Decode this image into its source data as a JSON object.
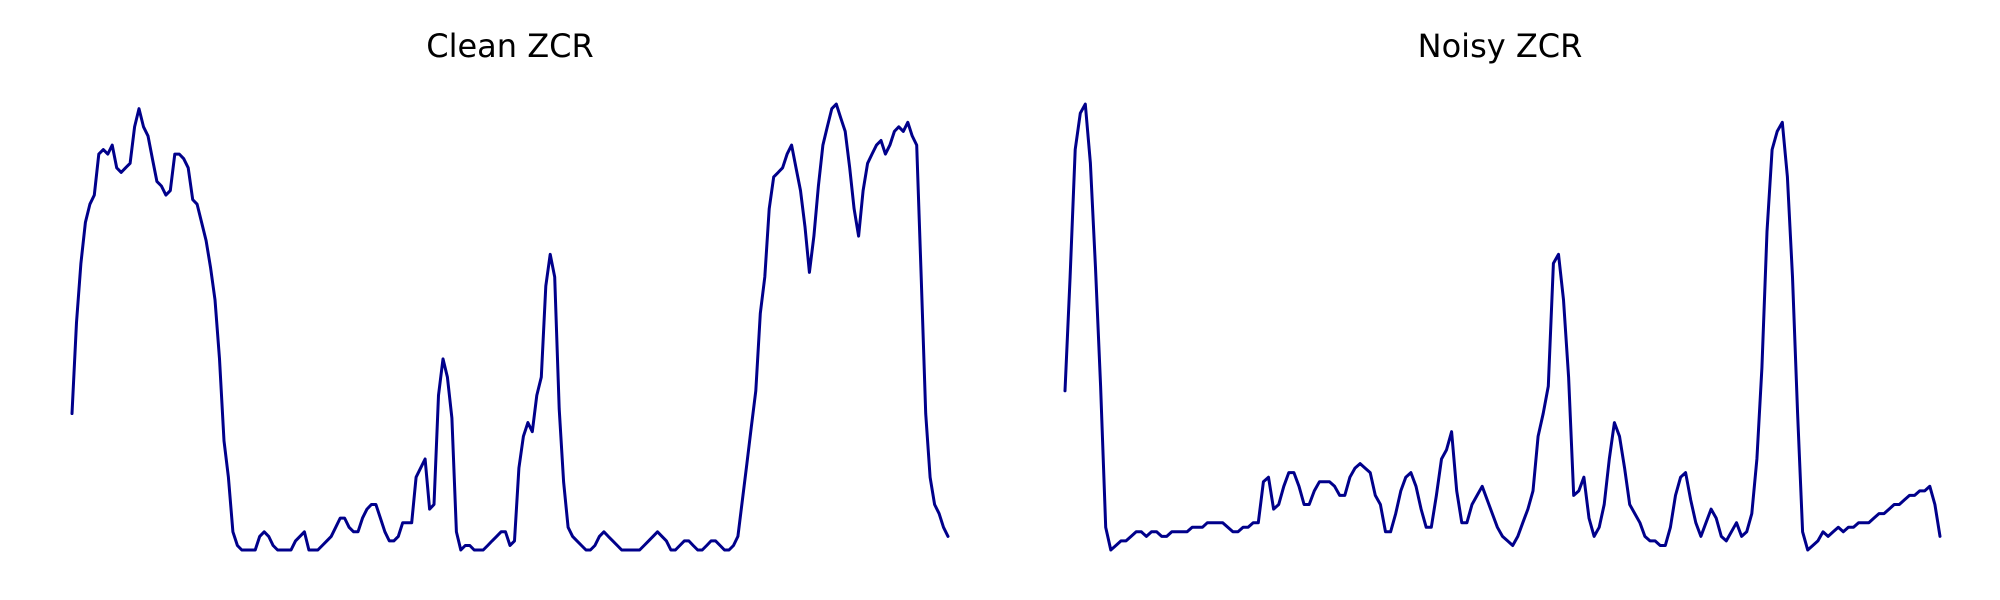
{
  "colors": {
    "line": "#00008B",
    "background": "#ffffff"
  },
  "chart_data": [
    {
      "type": "line",
      "title": "Clean ZCR",
      "xlabel": "",
      "ylabel": "",
      "grid": false,
      "axes_visible": false,
      "xlim": [
        0,
        165
      ],
      "ylim": [
        0,
        100
      ],
      "series": [
        {
          "values": [
            30,
            50,
            63,
            72,
            76,
            78,
            87,
            88,
            87,
            89,
            84,
            83,
            84,
            85,
            93,
            97,
            93,
            91,
            86,
            81,
            80,
            78,
            79,
            87,
            87,
            86,
            84,
            77,
            76,
            72,
            68,
            62,
            55,
            42,
            24,
            16,
            4,
            1,
            0,
            0,
            0,
            0,
            3,
            4,
            3,
            1,
            0,
            0,
            0,
            0,
            2,
            3,
            4,
            0,
            0,
            0,
            1,
            2,
            3,
            5,
            7,
            7,
            5,
            4,
            4,
            7,
            9,
            10,
            10,
            7,
            4,
            2,
            2,
            3,
            6,
            6,
            6,
            16,
            18,
            20,
            9,
            10,
            34,
            42,
            38,
            29,
            4,
            0,
            1,
            1,
            0,
            0,
            0,
            1,
            2,
            3,
            4,
            4,
            1,
            2,
            18,
            25,
            28,
            26,
            34,
            38,
            58,
            65,
            60,
            31,
            15,
            5,
            3,
            2,
            1,
            0,
            0,
            1,
            3,
            4,
            3,
            2,
            1,
            0,
            0,
            0,
            0,
            0,
            1,
            2,
            3,
            4,
            3,
            2,
            0,
            0,
            1,
            2,
            2,
            1,
            0,
            0,
            1,
            2,
            2,
            1,
            0,
            0,
            1,
            3,
            11,
            19,
            27,
            35,
            52,
            60,
            75,
            82,
            83,
            84,
            87,
            89,
            84,
            79,
            71,
            61,
            69,
            80,
            89,
            93,
            97,
            98,
            95,
            92,
            84,
            75,
            69,
            79,
            85,
            87,
            89,
            90,
            87,
            89,
            92,
            93,
            92,
            94,
            91,
            89,
            60,
            30,
            16,
            10,
            8,
            5,
            3
          ]
        }
      ]
    },
    {
      "type": "line",
      "title": "Noisy ZCR",
      "xlabel": "",
      "ylabel": "",
      "grid": false,
      "axes_visible": false,
      "xlim": [
        0,
        165
      ],
      "ylim": [
        0,
        100
      ],
      "series": [
        {
          "values": [
            35,
            60,
            88,
            96,
            98,
            85,
            62,
            36,
            5,
            0,
            1,
            2,
            2,
            3,
            4,
            4,
            3,
            4,
            4,
            3,
            3,
            4,
            4,
            4,
            4,
            5,
            5,
            5,
            6,
            6,
            6,
            6,
            5,
            4,
            4,
            5,
            5,
            6,
            6,
            15,
            16,
            9,
            10,
            14,
            17,
            17,
            14,
            10,
            10,
            13,
            15,
            15,
            15,
            14,
            12,
            12,
            16,
            18,
            19,
            18,
            17,
            12,
            10,
            4,
            4,
            8,
            13,
            16,
            17,
            14,
            9,
            5,
            5,
            12,
            20,
            22,
            26,
            13,
            6,
            6,
            10,
            12,
            14,
            11,
            8,
            5,
            3,
            2,
            1,
            3,
            6,
            9,
            13,
            25,
            30,
            36,
            63,
            65,
            55,
            38,
            12,
            13,
            16,
            7,
            3,
            5,
            10,
            20,
            28,
            25,
            18,
            10,
            8,
            6,
            3,
            2,
            2,
            1,
            1,
            5,
            12,
            16,
            17,
            11,
            6,
            3,
            6,
            9,
            7,
            3,
            2,
            4,
            6,
            3,
            4,
            8,
            20,
            40,
            70,
            88,
            92,
            94,
            82,
            60,
            30,
            4,
            0,
            1,
            2,
            4,
            3,
            4,
            5,
            4,
            5,
            5,
            6,
            6,
            6,
            7,
            8,
            8,
            9,
            10,
            10,
            11,
            12,
            12,
            13,
            13,
            14,
            10,
            3
          ]
        }
      ]
    }
  ]
}
